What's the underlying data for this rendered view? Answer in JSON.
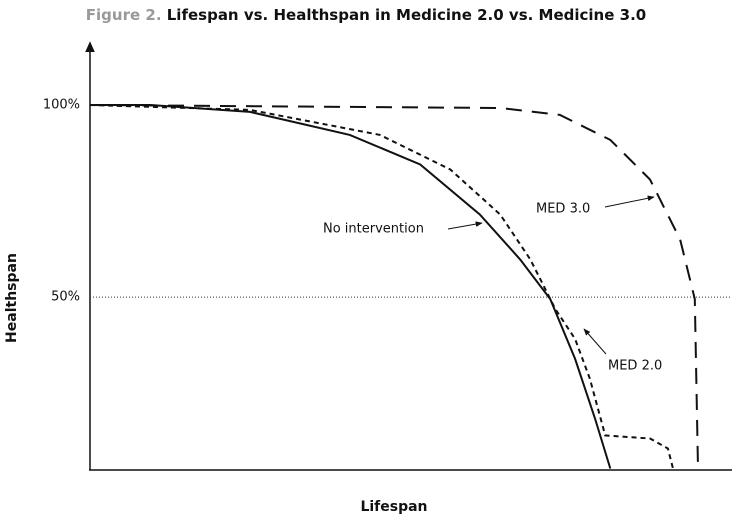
{
  "chart_data": {
    "type": "line",
    "title_prefix": "Figure 2.",
    "title": "Lifespan vs. Healthspan in Medicine 2.0 vs. Medicine 3.0",
    "xlabel": "Lifespan",
    "ylabel": "Healthspan",
    "xlim": [
      0,
      100
    ],
    "ylim": [
      5,
      113
    ],
    "yticks": [
      {
        "value": 100,
        "label": "100%"
      },
      {
        "value": 50,
        "label": "50%"
      }
    ],
    "reference_line": 50,
    "series": [
      {
        "name": "No intervention",
        "color": "#111111",
        "dash": "solid",
        "x": [
          0,
          9.4,
          25,
          40.6,
          51.6,
          60.9,
          67.2,
          71.9,
          75.8,
          78.9,
          81.3
        ],
        "values": [
          100,
          100,
          98.2,
          92.2,
          84.5,
          71.5,
          59.8,
          49.5,
          33.9,
          18.4,
          5.4
        ]
      },
      {
        "name": "MED 2.0",
        "color": "#111111",
        "dash": "5,4",
        "x": [
          0,
          25,
          45.3,
          56.3,
          64.1,
          68.8,
          72.7,
          75.8,
          78.1,
          80.5,
          87.5,
          90.3,
          91.1
        ],
        "values": [
          100,
          98.7,
          92.2,
          83.2,
          71.5,
          59.8,
          46.9,
          39.1,
          28.8,
          14.0,
          13.2,
          10.6,
          5.4
        ]
      },
      {
        "name": "MED 3.0",
        "color": "#111111",
        "dash": "16,10",
        "x": [
          0,
          64.1,
          73.4,
          81.3,
          87.5,
          92.2,
          94.5,
          95.0
        ],
        "values": [
          100,
          99.2,
          97.4,
          90.9,
          80.6,
          65.0,
          49.5,
          5.4
        ]
      }
    ]
  }
}
